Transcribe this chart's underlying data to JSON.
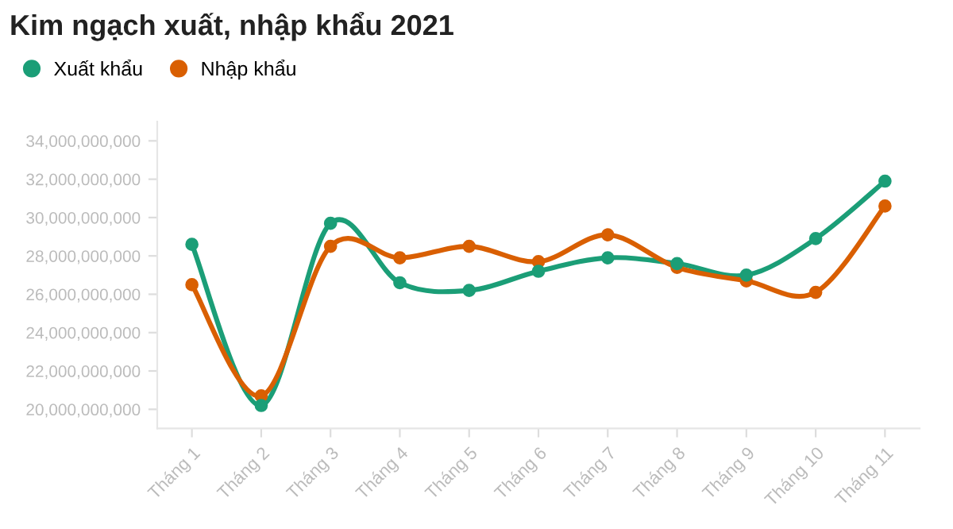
{
  "chart_data": {
    "type": "line",
    "title": "Kim ngạch xuất, nhập khẩu 2021",
    "categories": [
      "Tháng 1",
      "Tháng 2",
      "Tháng 3",
      "Tháng 4",
      "Tháng 5",
      "Tháng 6",
      "Tháng 7",
      "Tháng 8",
      "Tháng 9",
      "Tháng 10",
      "Tháng 11"
    ],
    "series": [
      {
        "name": "Xuất khẩu",
        "color": "#1b9e77",
        "values": [
          28600000000,
          20200000000,
          29700000000,
          26600000000,
          26200000000,
          27200000000,
          27900000000,
          27600000000,
          27000000000,
          28900000000,
          31900000000
        ]
      },
      {
        "name": "Nhập khẩu",
        "color": "#d95f02",
        "values": [
          26500000000,
          20700000000,
          28500000000,
          27900000000,
          28500000000,
          27700000000,
          29100000000,
          27400000000,
          26700000000,
          26100000000,
          30600000000
        ]
      }
    ],
    "ylim": [
      19000000000,
      35000000000
    ],
    "yticks": [
      {
        "value": 20000000000,
        "label": "20,000,000,000"
      },
      {
        "value": 22000000000,
        "label": "22,000,000,000"
      },
      {
        "value": 24000000000,
        "label": "24,000,000,000"
      },
      {
        "value": 26000000000,
        "label": "26,000,000,000"
      },
      {
        "value": 28000000000,
        "label": "28,000,000,000"
      },
      {
        "value": 30000000000,
        "label": "30,000,000,000"
      },
      {
        "value": 32000000000,
        "label": "32,000,000,000"
      },
      {
        "value": 34000000000,
        "label": "34,000,000,000"
      }
    ],
    "legend": "top left",
    "marker": "circle",
    "line_style": "solid",
    "grid": false
  }
}
